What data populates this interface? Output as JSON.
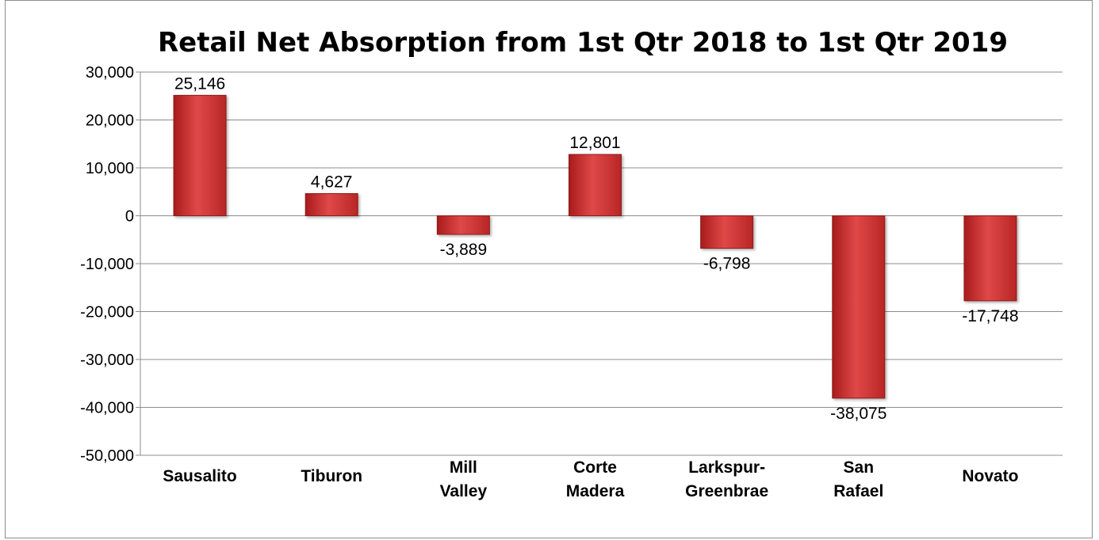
{
  "chart_data": {
    "type": "bar",
    "title": "Retail Net Absorption from 1st Qtr 2018 to 1st Qtr 2019",
    "xlabel": "",
    "ylabel": "",
    "categories": [
      [
        "Sausalito"
      ],
      [
        "Tiburon"
      ],
      [
        "Mill",
        "Valley"
      ],
      [
        "Corte",
        "Madera"
      ],
      [
        "Larkspur-",
        "Greenbrae"
      ],
      [
        "San",
        "Rafael"
      ],
      [
        "Novato"
      ]
    ],
    "values": [
      25146,
      4627,
      -3889,
      12801,
      -6798,
      -38075,
      -17748
    ],
    "value_labels": [
      "25,146",
      "4,627",
      "-3,889",
      "12,801",
      "-6,798",
      "-38,075",
      "-17,748"
    ],
    "ylim": [
      -50000,
      30000
    ],
    "yticks": [
      30000,
      20000,
      10000,
      0,
      -10000,
      -20000,
      -30000,
      -40000,
      -50000
    ],
    "ytick_labels": [
      "30,000",
      "20,000",
      "10,000",
      "0",
      "-10,000",
      "-20,000",
      "-30,000",
      "-40,000",
      "-50,000"
    ],
    "grid": true,
    "legend": "none",
    "bar_color": "#d13a3a"
  }
}
